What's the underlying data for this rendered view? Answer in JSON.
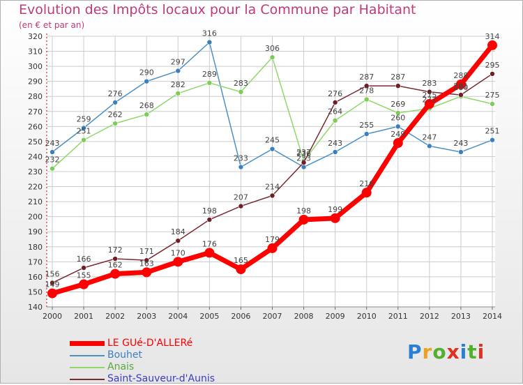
{
  "header": {
    "title": "Evolution des Impôts locaux pour la Commune par Habitant",
    "subtitle": "(en € et par an)"
  },
  "logo": {
    "text": "Proxiti"
  },
  "chart_data": {
    "type": "line",
    "title": "Evolution des Impôts locaux pour la Commune par Habitant",
    "subtitle": "(en € et par an)",
    "xlabel": "",
    "ylabel": "",
    "x": [
      2000,
      2001,
      2002,
      2003,
      2004,
      2005,
      2006,
      2007,
      2008,
      2009,
      2010,
      2011,
      2012,
      2013,
      2014
    ],
    "ylim": [
      140,
      320
    ],
    "yticks": [
      140,
      150,
      160,
      170,
      180,
      190,
      200,
      210,
      220,
      230,
      240,
      250,
      260,
      270,
      280,
      290,
      300,
      310,
      320
    ],
    "grid": true,
    "legend_position": "bottom-left",
    "series": [
      {
        "name": "Bouhet",
        "color": "#4a90c8",
        "marker": "#3b7fbf",
        "values": [
          243,
          259,
          276,
          290,
          297,
          316,
          233,
          245,
          233,
          243,
          255,
          260,
          247,
          243,
          251
        ]
      },
      {
        "name": "Anais",
        "color": "#8ed86a",
        "marker": "#7ccc55",
        "values": [
          232,
          251,
          262,
          268,
          282,
          289,
          283,
          306,
          237,
          264,
          278,
          269,
          272,
          280,
          275
        ]
      },
      {
        "name": "Saint-Sauveur-d'Aunis",
        "color": "#7a2a30",
        "marker": "#6e1f25",
        "values": [
          156,
          166,
          172,
          171,
          184,
          198,
          207,
          214,
          236,
          276,
          287,
          287,
          283,
          281,
          295
        ]
      },
      {
        "name": "LE GUé-D'ALLERé",
        "color": "#ff0000",
        "marker": "#ff0000",
        "values": [
          149,
          155,
          162,
          163,
          170,
          176,
          165,
          179,
          198,
          199,
          216,
          249,
          275,
          288,
          314
        ]
      }
    ],
    "legend_order": [
      "LE GUé-D'ALLERé",
      "Bouhet",
      "Anais",
      "Saint-Sauveur-d'Aunis"
    ]
  }
}
